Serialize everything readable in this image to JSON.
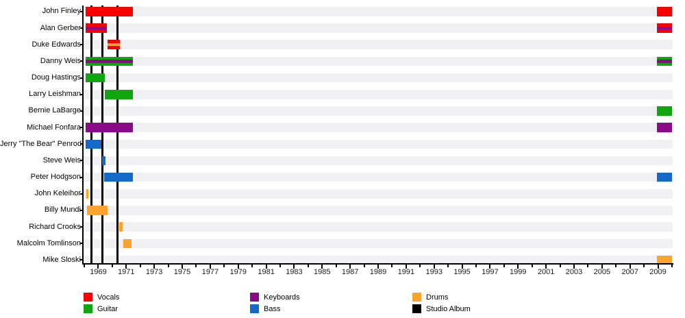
{
  "chart_data": {
    "type": "timeline",
    "title": "",
    "description": "Band member timeline: colored bars show each member's active periods by instrument; vertical black lines mark studio albums",
    "axis": {
      "start": 1967.9,
      "end": 2010.05,
      "major_tick_years": [
        1969,
        1971,
        1973,
        1975,
        1977,
        1979,
        1981,
        1983,
        1985,
        1987,
        1989,
        1991,
        1993,
        1995,
        1997,
        1999,
        2001,
        2003,
        2005,
        2007,
        2009
      ],
      "tick_labels": [
        "1969",
        "1971",
        "1973",
        "1975",
        "1977",
        "1979",
        "1981",
        "1983",
        "1985",
        "1987",
        "1989",
        "1991",
        "1993",
        "1995",
        "1997",
        "1999",
        "2001",
        "2003",
        "2005",
        "2007",
        "2009"
      ],
      "minor_tick_step": 1
    },
    "albums": [
      1968.5,
      1969.3,
      1970.35
    ],
    "colors": {
      "vocals": "#F80000",
      "guitar": "#0FA50F",
      "keyboards": "#8A0A8A",
      "bass": "#1569C7",
      "drums": "#FBA32C",
      "studio_album": "#000000",
      "row_band": "#F0F0F2",
      "axis": "#000000"
    },
    "legend": [
      {
        "label": "Vocals",
        "role": "vocals"
      },
      {
        "label": "Guitar",
        "role": "guitar"
      },
      {
        "label": "Keyboards",
        "role": "keyboards"
      },
      {
        "label": "Bass",
        "role": "bass"
      },
      {
        "label": "Drums",
        "role": "drums"
      },
      {
        "label": "Studio Album",
        "role": "studio_album"
      }
    ],
    "members": [
      {
        "name": "John Finley",
        "periods": [
          {
            "start": 1968.1,
            "end": 1971.45,
            "roles": [
              "vocals"
            ]
          },
          {
            "start": 2008.9,
            "end": 2010.0,
            "roles": [
              "vocals"
            ]
          }
        ]
      },
      {
        "name": "Alan Gerber",
        "periods": [
          {
            "start": 1968.1,
            "end": 1969.6,
            "roles": [
              "vocals",
              "keyboards"
            ]
          },
          {
            "start": 2008.9,
            "end": 2010.0,
            "roles": [
              "vocals",
              "keyboards"
            ]
          }
        ]
      },
      {
        "name": "Duke Edwards",
        "periods": [
          {
            "start": 1969.65,
            "end": 1970.55,
            "roles": [
              "vocals",
              "drums"
            ]
          }
        ]
      },
      {
        "name": "Danny Weis",
        "periods": [
          {
            "start": 1968.1,
            "end": 1971.45,
            "roles": [
              "guitar",
              "keyboards"
            ]
          },
          {
            "start": 2008.9,
            "end": 2010.0,
            "roles": [
              "guitar",
              "keyboards"
            ]
          }
        ]
      },
      {
        "name": "Doug Hastings",
        "periods": [
          {
            "start": 1968.1,
            "end": 1969.45,
            "roles": [
              "guitar"
            ]
          }
        ]
      },
      {
        "name": "Larry Leishman",
        "periods": [
          {
            "start": 1969.45,
            "end": 1971.45,
            "roles": [
              "guitar"
            ]
          }
        ]
      },
      {
        "name": "Bernie LaBarge",
        "periods": [
          {
            "start": 2008.9,
            "end": 2010.0,
            "roles": [
              "guitar"
            ]
          }
        ]
      },
      {
        "name": "Michael Fonfara",
        "periods": [
          {
            "start": 1968.1,
            "end": 1971.45,
            "roles": [
              "keyboards"
            ]
          },
          {
            "start": 2008.9,
            "end": 2010.0,
            "roles": [
              "keyboards"
            ]
          }
        ]
      },
      {
        "name": "Jerry \"The Bear\" Penrod",
        "periods": [
          {
            "start": 1968.1,
            "end": 1969.2,
            "roles": [
              "bass"
            ]
          }
        ]
      },
      {
        "name": "Steve Weis",
        "periods": [
          {
            "start": 1969.25,
            "end": 1969.5,
            "roles": [
              "bass"
            ]
          }
        ]
      },
      {
        "name": "Peter Hodgson",
        "periods": [
          {
            "start": 1969.4,
            "end": 1971.45,
            "roles": [
              "bass"
            ]
          },
          {
            "start": 2008.9,
            "end": 2010.0,
            "roles": [
              "bass"
            ]
          }
        ]
      },
      {
        "name": "John Keleihor",
        "periods": [
          {
            "start": 1968.15,
            "end": 1968.3,
            "roles": [
              "drums"
            ]
          }
        ]
      },
      {
        "name": "Billy Mundi",
        "periods": [
          {
            "start": 1968.2,
            "end": 1969.65,
            "roles": [
              "drums"
            ]
          }
        ]
      },
      {
        "name": "Richard Crooks",
        "periods": [
          {
            "start": 1970.5,
            "end": 1970.75,
            "roles": [
              "drums"
            ]
          }
        ]
      },
      {
        "name": "Malcolm Tomlinson",
        "periods": [
          {
            "start": 1970.8,
            "end": 1971.4,
            "roles": [
              "drums"
            ]
          }
        ]
      },
      {
        "name": "Mike Sloski",
        "periods": [
          {
            "start": 2008.9,
            "end": 2010.0,
            "roles": [
              "drums"
            ]
          }
        ]
      }
    ]
  }
}
